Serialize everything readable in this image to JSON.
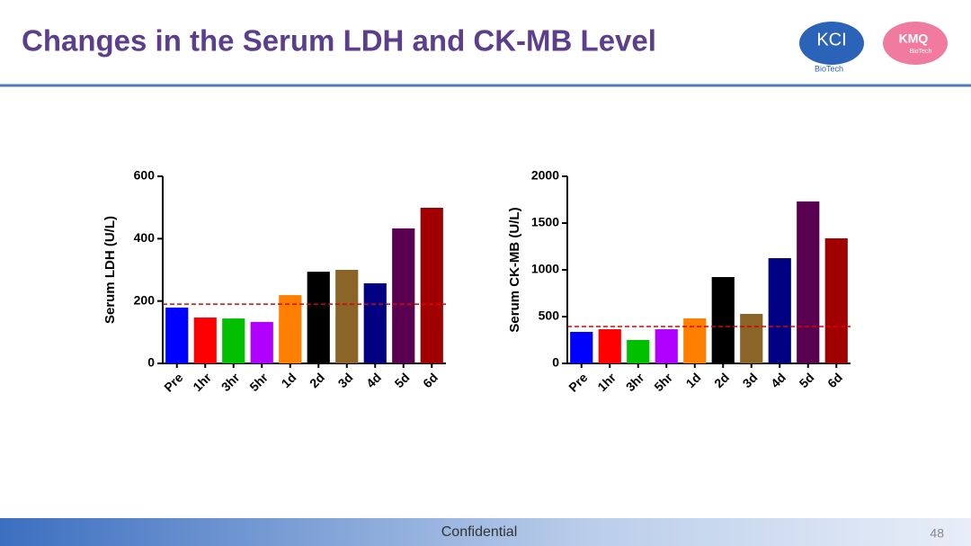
{
  "title": "Changes in the Serum LDH and CK-MB Level",
  "logos": {
    "left_name": "KCI",
    "left_sub": "BioTech",
    "right_name": "KMQ",
    "right_sub": "BioTech"
  },
  "footer": "Confidential",
  "page_number": "48",
  "chart_data": [
    {
      "type": "bar",
      "y_label": "Serum LDH (U/L)",
      "categories": [
        "Pre",
        "1hr",
        "3hr",
        "5hr",
        "1d",
        "2d",
        "3d",
        "4d",
        "5d",
        "6d"
      ],
      "values": [
        179,
        147,
        144,
        133,
        219,
        294,
        300,
        257,
        433,
        499
      ],
      "colors": [
        "#0000ff",
        "#ff0000",
        "#00c000",
        "#b000ff",
        "#ff8000",
        "#000000",
        "#8b6428",
        "#000080",
        "#5a0050",
        "#a00000"
      ],
      "reference_line": {
        "value": 190,
        "color": "#e00000"
      },
      "ylim": [
        0,
        600
      ],
      "yticks": [
        0,
        200,
        400,
        600
      ]
    },
    {
      "type": "bar",
      "y_label": "Serum CK-MB (U/L)",
      "categories": [
        "Pre",
        "1hr",
        "3hr",
        "5hr",
        "1d",
        "2d",
        "3d",
        "4d",
        "5d",
        "6d"
      ],
      "values": [
        337,
        365,
        250,
        365,
        481,
        923,
        529,
        1125,
        1731,
        1337
      ],
      "colors": [
        "#0000ff",
        "#ff0000",
        "#00c000",
        "#b000ff",
        "#ff8000",
        "#000000",
        "#8b6428",
        "#000080",
        "#5a0050",
        "#a00000"
      ],
      "reference_line": {
        "value": 394,
        "color": "#e00000"
      },
      "ylim": [
        0,
        2000
      ],
      "yticks": [
        0,
        500,
        1000,
        1500,
        2000
      ]
    }
  ]
}
